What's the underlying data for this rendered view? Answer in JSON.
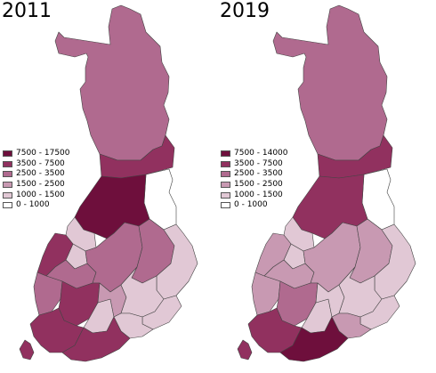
{
  "maps": [
    {
      "year": "2011",
      "legend_title": "",
      "legend": [
        {
          "label": "7500 - 17500",
          "color": "#6e0f3c"
        },
        {
          "label": "3500 - 7500",
          "color": "#91315f"
        },
        {
          "label": "2500 - 3500",
          "color": "#b06a8f"
        },
        {
          "label": "1500 - 2500",
          "color": "#c899b2"
        },
        {
          "label": "1000 - 1500",
          "color": "#e1c8d5"
        },
        {
          "label": "0 - 1000",
          "color": "#ffffff"
        }
      ],
      "regions": [
        {
          "region": "Lapland",
          "class": 2
        },
        {
          "region": "Kainuu",
          "class": 5
        },
        {
          "region": "Koillismaa",
          "class": 1
        },
        {
          "region": "Oulu",
          "class": 0
        },
        {
          "region": "Ylivieska",
          "class": 4
        },
        {
          "region": "Central Ostrobothnia",
          "class": 4
        },
        {
          "region": "Ostrobothnia",
          "class": 1
        },
        {
          "region": "South Ostrobothnia",
          "class": 2
        },
        {
          "region": "Central Finland",
          "class": 2
        },
        {
          "region": "North Savo",
          "class": 2
        },
        {
          "region": "North Karelia",
          "class": 4
        },
        {
          "region": "Satakunta",
          "class": 2
        },
        {
          "region": "Pirkanmaa",
          "class": 1
        },
        {
          "region": "Kanta-Häme",
          "class": 4
        },
        {
          "region": "Päijät-Häme",
          "class": 3
        },
        {
          "region": "South Savo",
          "class": 4
        },
        {
          "region": "South Karelia",
          "class": 4
        },
        {
          "region": "Kymenlaakso",
          "class": 4
        },
        {
          "region": "Southwest Finland",
          "class": 1
        },
        {
          "region": "Uusimaa",
          "class": 1
        },
        {
          "region": "Åland",
          "class": 1
        }
      ]
    },
    {
      "year": "2019",
      "legend_title": "",
      "legend": [
        {
          "label": "7500 - 14000",
          "color": "#6e0f3c"
        },
        {
          "label": "3500 - 7500",
          "color": "#91315f"
        },
        {
          "label": "2500 - 3500",
          "color": "#b06a8f"
        },
        {
          "label": "1500 - 2500",
          "color": "#c899b2"
        },
        {
          "label": "1000 - 1500",
          "color": "#e1c8d5"
        },
        {
          "label": "0 - 1000",
          "color": "#ffffff"
        }
      ],
      "regions": [
        {
          "region": "Lapland",
          "class": 2
        },
        {
          "region": "Kainuu",
          "class": 5
        },
        {
          "region": "Koillismaa",
          "class": 1
        },
        {
          "region": "Oulu",
          "class": 1
        },
        {
          "region": "Ylivieska",
          "class": 4
        },
        {
          "region": "Central Ostrobothnia",
          "class": 4
        },
        {
          "region": "Ostrobothnia",
          "class": 3
        },
        {
          "region": "South Ostrobothnia",
          "class": 3
        },
        {
          "region": "Central Finland",
          "class": 3
        },
        {
          "region": "North Savo",
          "class": 3
        },
        {
          "region": "North Karelia",
          "class": 4
        },
        {
          "region": "Satakunta",
          "class": 3
        },
        {
          "region": "Pirkanmaa",
          "class": 2
        },
        {
          "region": "Kanta-Häme",
          "class": 4
        },
        {
          "region": "Päijät-Häme",
          "class": 4
        },
        {
          "region": "South Savo",
          "class": 4
        },
        {
          "region": "South Karelia",
          "class": 4
        },
        {
          "region": "Kymenlaakso",
          "class": 3
        },
        {
          "region": "Southwest Finland",
          "class": 1
        },
        {
          "region": "Uusimaa",
          "class": 0
        },
        {
          "region": "Åland",
          "class": 1
        }
      ]
    }
  ]
}
